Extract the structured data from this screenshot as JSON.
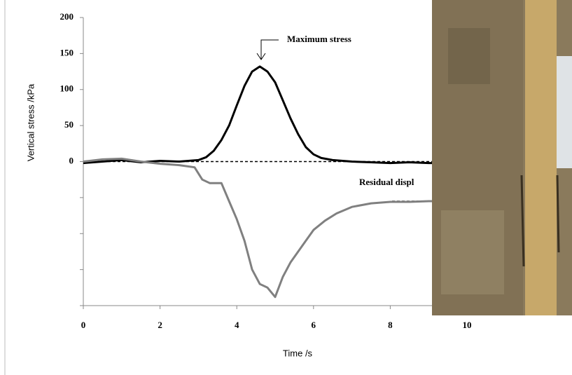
{
  "chart_data": {
    "type": "line",
    "xlabel": "Time /s",
    "ylabel": "Vertical stress /kPa",
    "annotations": [
      "Maximum stress",
      "Residual displ"
    ],
    "xlim": [
      0,
      10
    ],
    "xticks": [
      0,
      2,
      4,
      6,
      8,
      10
    ],
    "ylim": [
      -200,
      200
    ],
    "yticks": [
      {
        "value": -200,
        "label": null
      },
      {
        "value": -150,
        "label": null
      },
      {
        "value": -100,
        "label": null
      },
      {
        "value": -50,
        "label": null
      },
      0,
      50,
      100,
      150,
      200
    ],
    "series": [
      {
        "name": null,
        "color": "#000000",
        "x": [
          0,
          0.5,
          1,
          1.5,
          2,
          2.5,
          3,
          3.2,
          3.4,
          3.6,
          3.8,
          4,
          4.2,
          4.4,
          4.6,
          4.8,
          5,
          5.2,
          5.4,
          5.6,
          5.8,
          6,
          6.2,
          6.5,
          7,
          7.5,
          8,
          8.5,
          9,
          9.1
        ],
        "values": [
          -2,
          0,
          2,
          -1,
          1,
          0,
          2,
          6,
          15,
          30,
          50,
          78,
          105,
          125,
          132,
          125,
          110,
          85,
          60,
          38,
          20,
          10,
          5,
          2,
          0,
          -1,
          -2,
          -1,
          -2,
          -2
        ]
      },
      {
        "name": null,
        "color": "#808080",
        "x": [
          0,
          0.5,
          1,
          1.5,
          2,
          2.5,
          2.9,
          3.1,
          3.3,
          3.6,
          3.8,
          4,
          4.2,
          4.4,
          4.6,
          4.8,
          5,
          5.2,
          5.4,
          5.6,
          5.8,
          6,
          6.3,
          6.6,
          7,
          7.5,
          8,
          8.5,
          9,
          9.1
        ],
        "values": [
          0,
          3,
          4,
          0,
          -3,
          -5,
          -8,
          -25,
          -30,
          -30,
          -55,
          -80,
          -110,
          -150,
          -170,
          -175,
          -188,
          -160,
          -140,
          -125,
          -110,
          -95,
          -82,
          -72,
          -63,
          -58,
          -56,
          -56,
          -55,
          -55
        ]
      }
    ],
    "zero_line": 0,
    "residual_line": -55
  }
}
